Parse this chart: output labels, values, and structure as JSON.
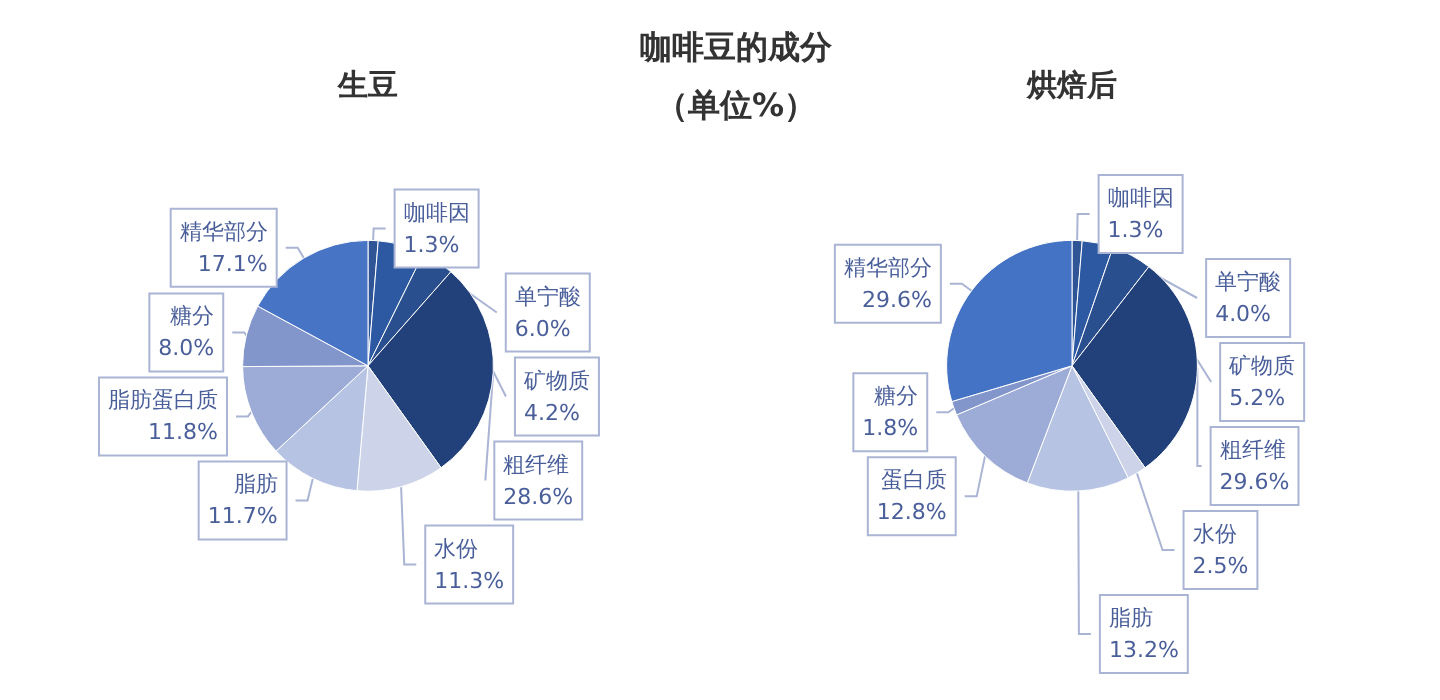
{
  "chart_data": [
    {
      "type": "other",
      "title": "咖啡豆的成分",
      "subtitle": "（单位%）"
    },
    {
      "type": "pie",
      "title": "生豆",
      "categories": [
        "咖啡因",
        "单宁酸",
        "矿物质",
        "粗纤维",
        "水份",
        "脂肪",
        "脂肪蛋白质",
        "糖分",
        "精华部分"
      ],
      "values": [
        1.3,
        6.0,
        4.2,
        28.6,
        11.3,
        11.7,
        11.8,
        8.0,
        17.1
      ],
      "value_labels": [
        "1.3%",
        "6.0%",
        "4.2%",
        "28.6%",
        "11.3%",
        "11.7%",
        "11.8%",
        "8.0%",
        "17.1%"
      ],
      "colors": [
        "#2f5597",
        "#2d59a3",
        "#2a4f8f",
        "#22407a",
        "#cdd4ea",
        "#b7c3e2",
        "#9dacd7",
        "#8296cc",
        "#4874c6"
      ]
    },
    {
      "type": "pie",
      "title": "烘焙后",
      "categories": [
        "咖啡因",
        "单宁酸",
        "矿物质",
        "粗纤维",
        "水份",
        "脂肪",
        "蛋白质",
        "糖分",
        "精华部分"
      ],
      "values": [
        1.3,
        4.0,
        5.2,
        29.6,
        2.5,
        13.2,
        12.8,
        1.8,
        29.6
      ],
      "value_labels": [
        "1.3%",
        "4.0%",
        "5.2%",
        "29.6%",
        "2.5%",
        "13.2%",
        "12.8%",
        "1.8%",
        "29.6%"
      ],
      "colors": [
        "#2f5597",
        "#2d59a3",
        "#2a4f8f",
        "#22407a",
        "#cdd4ea",
        "#b7c3e2",
        "#9dacd7",
        "#8296cc",
        "#4472c4"
      ]
    }
  ]
}
